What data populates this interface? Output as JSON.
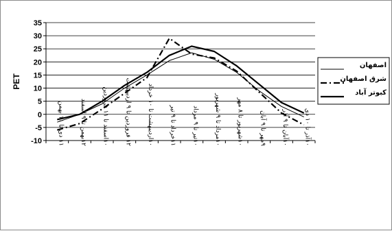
{
  "chart_data": {
    "type": "line",
    "ylabel": "PET",
    "xlabel": "",
    "title": "",
    "ylim": [
      -10,
      35
    ],
    "ytick_step": 5,
    "grid": "horizontal",
    "legend_position": "right",
    "categories": [
      "۱۱ دی تا ۱۱ بهمن",
      "۱۲بهمن تا ۹ اسفند",
      "۱۰اسفند تا ۱۱ فروردین",
      "۱۲ فروردین تا ۹ اردیبهشت",
      "۱۰اردیبهشت تا ۱۰ خرداد",
      "۱۱خرداد تا ۹ تیر",
      "۱۰تیر تا ۹ مرداد",
      "۱۰مرداد تا ۹ شهریور",
      "۱۰شهریور تا ۸ مهر",
      "۹مهر تا ۹ آبان",
      "۱۰آبان تا ۹ آذر",
      "۱۰آذر تا ۱۰ دی"
    ],
    "series": [
      {
        "name": "اصفهان",
        "style": "thin",
        "color": "#000000",
        "values": [
          -3,
          0,
          4,
          10,
          15,
          20.5,
          23.5,
          21,
          16,
          9,
          3,
          -1
        ]
      },
      {
        "name": "شرق اصفهان",
        "style": "dashdot",
        "color": "#000000",
        "values": [
          -6,
          -3.5,
          2,
          8,
          14,
          29,
          23,
          21.5,
          16.5,
          8.5,
          0.5,
          -4
        ]
      },
      {
        "name": "کبوتر آباد",
        "style": "thick",
        "color": "#000000",
        "values": [
          -2,
          0,
          5,
          11,
          16,
          22.5,
          26,
          24,
          18.5,
          11.5,
          4.5,
          0.5
        ]
      }
    ]
  }
}
